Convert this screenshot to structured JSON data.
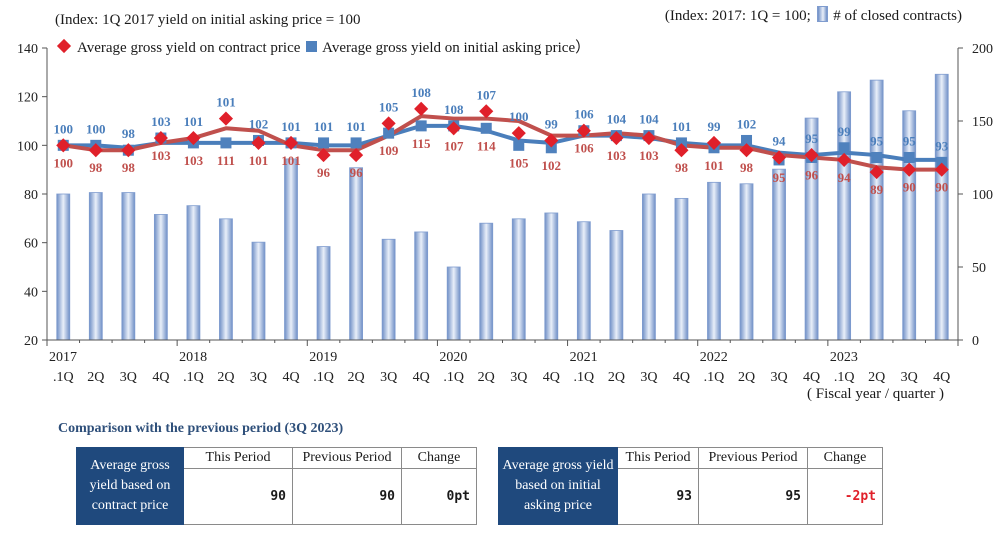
{
  "header": {
    "left_note": "(Index: 1Q 2017 yield on initial asking price = 100",
    "right_note_pre": "(Index: 2017: 1Q = 100;",
    "right_note_post": "# of closed contracts)",
    "legend_contract": "Average gross yield on contract price",
    "legend_asking": "Average gross yield on initial asking price）"
  },
  "chart_data": {
    "type": "bar+line",
    "categories": [
      "2017 1Q",
      "2017 2Q",
      "2017 3Q",
      "2017 4Q",
      "2018 1Q",
      "2018 2Q",
      "2018 3Q",
      "2018 4Q",
      "2019 1Q",
      "2019 2Q",
      "2019 3Q",
      "2019 4Q",
      "2020 1Q",
      "2020 2Q",
      "2020 3Q",
      "2020 4Q",
      "2021 1Q",
      "2021 2Q",
      "2021 3Q",
      "2021 4Q",
      "2022 1Q",
      "2022 2Q",
      "2022 3Q",
      "2022 4Q",
      "2023 1Q",
      "2023 2Q",
      "2023 3Q",
      "2023 4Q"
    ],
    "year_labels": [
      "2017",
      "2018",
      "2019",
      "2020",
      "2021",
      "2022",
      "2023"
    ],
    "quarter_labels": [
      ".1Q",
      "2Q",
      "3Q",
      "4Q",
      ".1Q",
      "2Q",
      "3Q",
      "4Q",
      ".1Q",
      "2Q",
      "3Q",
      "4Q",
      ".1Q",
      "2Q",
      "3Q",
      "4Q",
      ".1Q",
      "2Q",
      "3Q",
      "4Q",
      ".1Q",
      "2Q",
      "3Q",
      "4Q",
      ".1Q",
      "2Q",
      "3Q",
      "4Q"
    ],
    "xlabel": "( Fiscal year / quarter )",
    "y_left": {
      "min": 20,
      "max": 140,
      "ticks": [
        20,
        40,
        60,
        80,
        100,
        120,
        140
      ]
    },
    "y_right": {
      "min": 0,
      "max": 200,
      "ticks": [
        0,
        50,
        100,
        150,
        200
      ]
    },
    "series": [
      {
        "name": "# of closed contracts",
        "kind": "bar",
        "axis": "right",
        "values": [
          100,
          101,
          101,
          86,
          92,
          83,
          67,
          124,
          64,
          118,
          69,
          74,
          50,
          80,
          83,
          87,
          81,
          75,
          100,
          97,
          108,
          107,
          117,
          152,
          170,
          178,
          157,
          182
        ]
      },
      {
        "name": "Average gross yield on contract price",
        "kind": "line",
        "color": "#c0504d",
        "marker_color": "#e0202a",
        "values": [
          100,
          98,
          98,
          103,
          103,
          111,
          101,
          101,
          96,
          96,
          109,
          115,
          107,
          114,
          105,
          102,
          106,
          103,
          103,
          98,
          101,
          98,
          95,
          96,
          94,
          89,
          90,
          90
        ],
        "trend": [
          100,
          98,
          98,
          101,
          103,
          107,
          106,
          100,
          98,
          98,
          104,
          112,
          111,
          111,
          110,
          104,
          104,
          105,
          104,
          100,
          99,
          99,
          96,
          95,
          94,
          91,
          90,
          90
        ]
      },
      {
        "name": "Average gross yield on initial asking price",
        "kind": "line",
        "color": "#4a7ebb",
        "marker_color": "#4f81bd",
        "values": [
          100,
          100,
          98,
          103,
          101,
          101,
          102,
          101,
          101,
          101,
          105,
          108,
          108,
          107,
          100,
          99,
          106,
          104,
          104,
          101,
          99,
          102,
          94,
          95,
          99,
          95,
          95,
          93
        ],
        "trend": [
          100,
          100,
          99,
          101,
          101,
          101,
          101,
          101,
          100,
          100,
          104,
          108,
          108,
          106,
          102,
          101,
          104,
          104,
          103,
          101,
          100,
          100,
          97,
          96,
          97,
          96,
          94,
          94
        ]
      }
    ]
  },
  "comparison": {
    "title": "Comparison with the previous period (3Q 2023)",
    "col_this": "This Period",
    "col_prev": "Previous Period",
    "col_change": "Change",
    "contract": {
      "label": "Average gross yield based on contract price",
      "this": "90",
      "prev": "90",
      "change": "0pt"
    },
    "asking": {
      "label": "Average gross yield based on initial asking price",
      "this": "93",
      "prev": "95",
      "change": "-2pt"
    }
  }
}
